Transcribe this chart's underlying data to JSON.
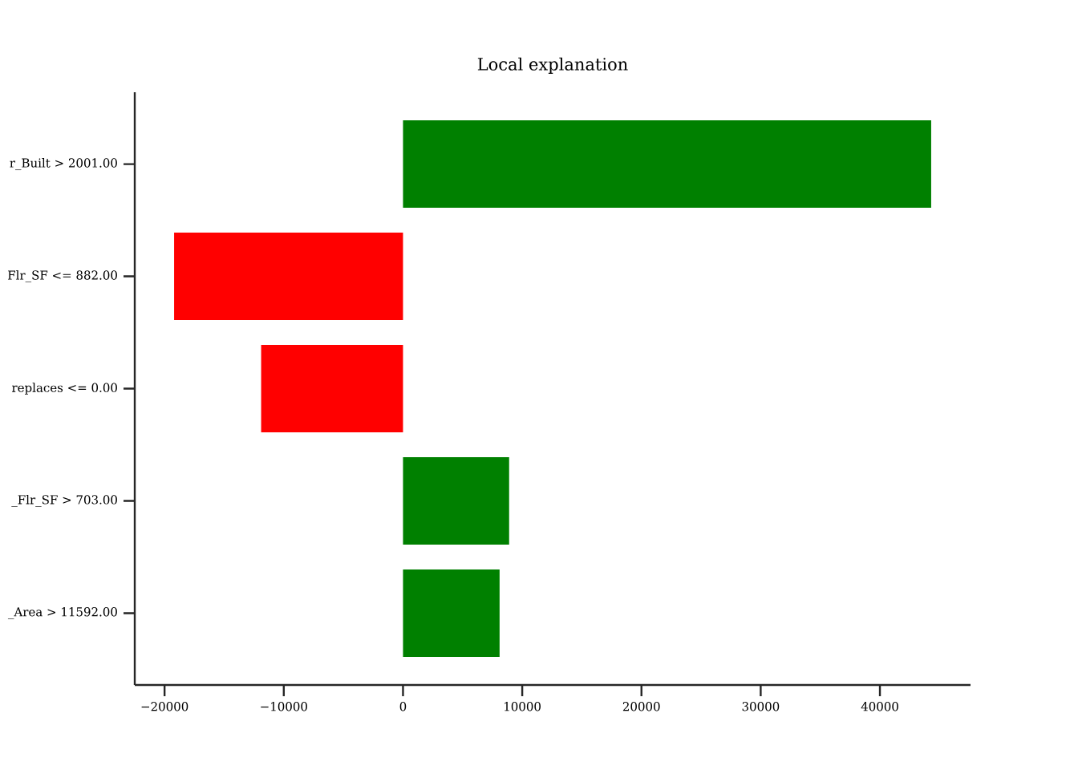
{
  "chart_data": {
    "type": "bar",
    "orientation": "horizontal",
    "title": "Local explanation",
    "categories": [
      "r_Built > 2001.00",
      "Flr_SF <= 882.00",
      "replaces <= 0.00",
      "_Flr_SF > 703.00",
      "_Area > 11592.00"
    ],
    "values": [
      44300,
      -19200,
      -11900,
      8900,
      8100
    ],
    "colors": [
      "#008000",
      "#ff0000",
      "#ff0000",
      "#008000",
      "#008000"
    ],
    "xlim": [
      -22500,
      47600
    ],
    "xticks": [
      {
        "value": -20000,
        "label": "−20000"
      },
      {
        "value": -10000,
        "label": "−10000"
      },
      0,
      10000,
      20000,
      30000,
      40000
    ],
    "grid": false
  }
}
